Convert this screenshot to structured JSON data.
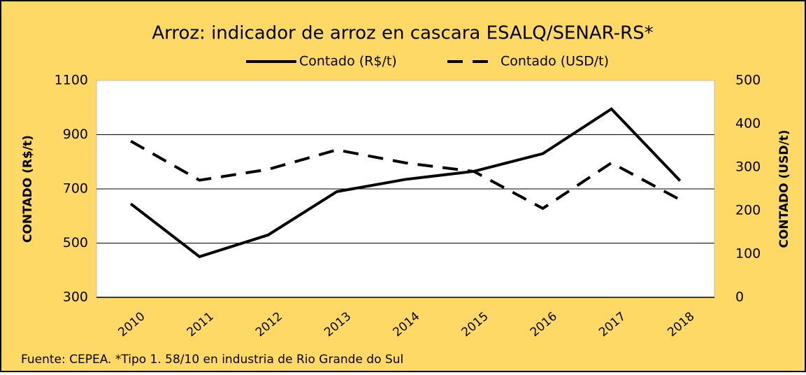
{
  "chart_data": {
    "type": "line",
    "title": "Arroz: indicador de arroz en cascara ESALQ/SENAR-RS*",
    "y_label": "CONTADO (R$/t)",
    "y2_label": "CONTADO (USD/t)",
    "footnote": "Fuente: CEPEA. *Tipo 1. 58/10 en industria de Rio Grande do Sul",
    "categories": [
      "2010",
      "2011",
      "2012",
      "2013",
      "2014",
      "2015",
      "2016",
      "2017",
      "2018"
    ],
    "series": [
      {
        "name": "Contado (R$/t)",
        "color": "#000000",
        "dash": false,
        "values": [
          645,
          450,
          530,
          690,
          735,
          765,
          830,
          995,
          730
        ]
      },
      {
        "name": "Contado (USD/t)",
        "color": "#000000",
        "dash": true,
        "axis": "y2",
        "values": [
          360,
          270,
          295,
          340,
          310,
          290,
          205,
          310,
          225
        ]
      }
    ],
    "ylim": [
      300,
      1100
    ],
    "yticks": [
      300,
      500,
      700,
      900,
      1100
    ],
    "y2lim": [
      0,
      500
    ],
    "y2ticks": [
      0,
      100,
      200,
      300,
      400,
      500
    ],
    "grid": true,
    "legend": "top"
  }
}
